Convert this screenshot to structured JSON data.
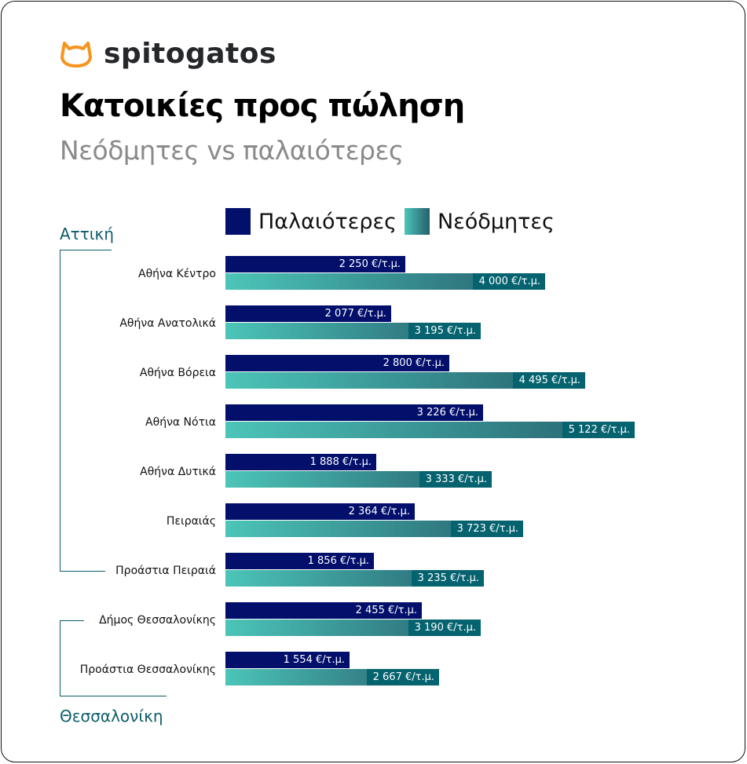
{
  "brand": {
    "name": "spitogatos",
    "logo_color": "#f7941d"
  },
  "title": "Κατοικίες προς πώληση",
  "subtitle": "Νεόδμητες vs παλαιότερες",
  "groups": {
    "attica": "Αττική",
    "thessaloniki": "Θεσσαλονίκη"
  },
  "chart_data": {
    "type": "bar",
    "orientation": "horizontal",
    "unit": "€/τ.μ.",
    "categories": [
      "Αθήνα Κέντρο",
      "Αθήνα Ανατολικά",
      "Αθήνα Βόρεια",
      "Αθήνα Νότια",
      "Αθήνα Δυτικά",
      "Πειραιάς",
      "Προάστια Πειραιά",
      "Δήμος Θεσσαλονίκης",
      "Προάστια Θεσσαλονίκης"
    ],
    "series": [
      {
        "name": "Παλαιότερες",
        "color": "#020f6b",
        "values": [
          2250,
          2077,
          2800,
          3226,
          1888,
          2364,
          1856,
          2455,
          1554
        ],
        "labels": [
          "2 250 €/τ.μ.",
          "2 077 €/τ.μ.",
          "2 800 €/τ.μ.",
          "3 226 €/τ.μ.",
          "1 888 €/τ.μ.",
          "2 364 €/τ.μ.",
          "1 856 €/τ.μ.",
          "2 455 €/τ.μ.",
          "1 554 €/τ.μ."
        ]
      },
      {
        "name": "Νεόδμητες",
        "color": "#05636f",
        "gradient": [
          "#4cc5b8",
          "#265f6e"
        ],
        "values": [
          4000,
          3195,
          4495,
          5122,
          3333,
          3723,
          3235,
          3190,
          2667
        ],
        "labels": [
          "4 000 €/τ.μ.",
          "3 195 €/τ.μ.",
          "4 495 €/τ.μ.",
          "5 122 €/τ.μ.",
          "3 333 €/τ.μ.",
          "3 723 €/τ.μ.",
          "3 235 €/τ.μ.",
          "3 190 €/τ.μ.",
          "2 667 €/τ.μ."
        ]
      }
    ],
    "legend": "top",
    "grid": false
  }
}
